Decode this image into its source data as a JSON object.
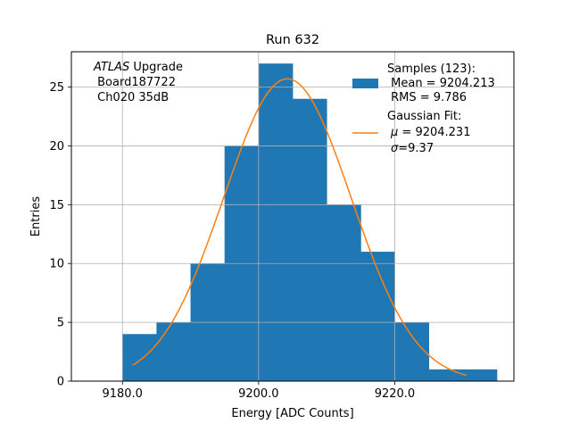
{
  "chart_data": {
    "type": "bar",
    "title": "Run 632",
    "xlabel": "Energy [ADC Counts]",
    "ylabel": "Entries",
    "xlim": [
      9172.5,
      9237.5
    ],
    "ylim": [
      0,
      28
    ],
    "x_ticks": [
      9180,
      9200,
      9220
    ],
    "x_tick_labels": [
      "9180.0",
      "9200.0",
      "9220.0"
    ],
    "y_ticks": [
      0,
      5,
      10,
      15,
      20,
      25
    ],
    "y_tick_labels": [
      "0",
      "5",
      "10",
      "15",
      "20",
      "25"
    ],
    "grid": true,
    "annotation": {
      "line1_italic": "ATLAS",
      "line1_rest": " Upgrade",
      "line2": " Board187722",
      "line3": " Ch020 35dB"
    },
    "histogram": {
      "name": "Samples (123):",
      "color": "#1f77b4",
      "bin_edges": [
        9180,
        9185,
        9190,
        9195,
        9200,
        9205,
        9210,
        9215,
        9220,
        9225,
        9230,
        9235
      ],
      "counts": [
        4,
        5,
        10,
        20,
        27,
        24,
        15,
        11,
        5,
        1,
        1
      ]
    },
    "fit": {
      "name": "Gaussian Fit:",
      "color": "#ff7f0e",
      "type": "gaussian",
      "mu": 9204.231,
      "sigma": 9.37,
      "amplitude": 25.7,
      "x_range": [
        9181.5,
        9230.5
      ]
    },
    "legend": {
      "location": "upper right",
      "samples_label": "Samples (123):",
      "samples_mean": " Mean = 9204.213",
      "samples_rms": " RMS = 9.786",
      "fit_label": "Gaussian Fit:",
      "fit_mu_symbol": "μ",
      "fit_mu_value": " = 9204.231",
      "fit_sigma_symbol": "σ",
      "fit_sigma_value": "=9.37"
    }
  }
}
